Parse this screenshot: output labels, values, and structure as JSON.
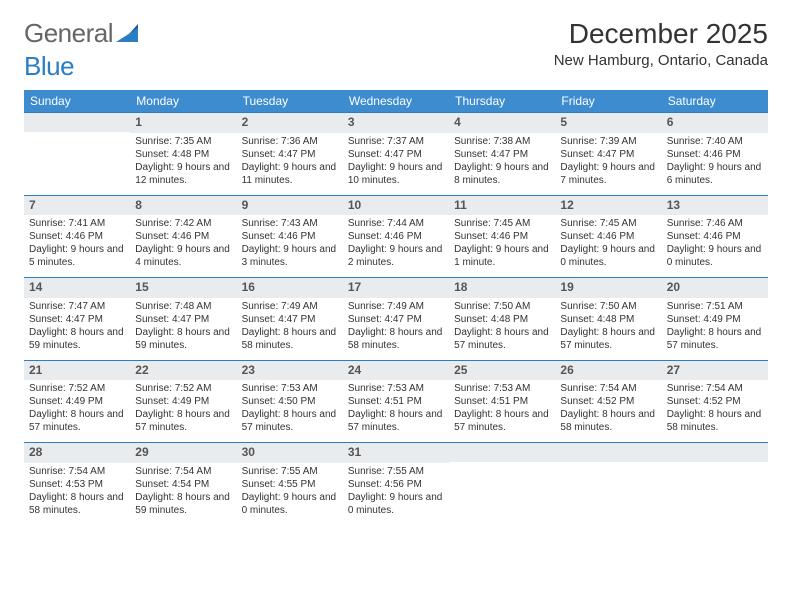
{
  "brand": {
    "part1": "General",
    "part2": "Blue"
  },
  "title": "December 2025",
  "location": "New Hamburg, Ontario, Canada",
  "colors": {
    "header_bg": "#3d8cd0",
    "header_text": "#ffffff",
    "daynum_bg": "#e9ecef",
    "border": "#2b7dc4",
    "logo_accent": "#2b7dc4"
  },
  "day_headers": [
    "Sunday",
    "Monday",
    "Tuesday",
    "Wednesday",
    "Thursday",
    "Friday",
    "Saturday"
  ],
  "weeks": [
    [
      null,
      {
        "n": "1",
        "sr": "7:35 AM",
        "ss": "4:48 PM",
        "dl": "9 hours and 12 minutes."
      },
      {
        "n": "2",
        "sr": "7:36 AM",
        "ss": "4:47 PM",
        "dl": "9 hours and 11 minutes."
      },
      {
        "n": "3",
        "sr": "7:37 AM",
        "ss": "4:47 PM",
        "dl": "9 hours and 10 minutes."
      },
      {
        "n": "4",
        "sr": "7:38 AM",
        "ss": "4:47 PM",
        "dl": "9 hours and 8 minutes."
      },
      {
        "n": "5",
        "sr": "7:39 AM",
        "ss": "4:47 PM",
        "dl": "9 hours and 7 minutes."
      },
      {
        "n": "6",
        "sr": "7:40 AM",
        "ss": "4:46 PM",
        "dl": "9 hours and 6 minutes."
      }
    ],
    [
      {
        "n": "7",
        "sr": "7:41 AM",
        "ss": "4:46 PM",
        "dl": "9 hours and 5 minutes."
      },
      {
        "n": "8",
        "sr": "7:42 AM",
        "ss": "4:46 PM",
        "dl": "9 hours and 4 minutes."
      },
      {
        "n": "9",
        "sr": "7:43 AM",
        "ss": "4:46 PM",
        "dl": "9 hours and 3 minutes."
      },
      {
        "n": "10",
        "sr": "7:44 AM",
        "ss": "4:46 PM",
        "dl": "9 hours and 2 minutes."
      },
      {
        "n": "11",
        "sr": "7:45 AM",
        "ss": "4:46 PM",
        "dl": "9 hours and 1 minute."
      },
      {
        "n": "12",
        "sr": "7:45 AM",
        "ss": "4:46 PM",
        "dl": "9 hours and 0 minutes."
      },
      {
        "n": "13",
        "sr": "7:46 AM",
        "ss": "4:46 PM",
        "dl": "9 hours and 0 minutes."
      }
    ],
    [
      {
        "n": "14",
        "sr": "7:47 AM",
        "ss": "4:47 PM",
        "dl": "8 hours and 59 minutes."
      },
      {
        "n": "15",
        "sr": "7:48 AM",
        "ss": "4:47 PM",
        "dl": "8 hours and 59 minutes."
      },
      {
        "n": "16",
        "sr": "7:49 AM",
        "ss": "4:47 PM",
        "dl": "8 hours and 58 minutes."
      },
      {
        "n": "17",
        "sr": "7:49 AM",
        "ss": "4:47 PM",
        "dl": "8 hours and 58 minutes."
      },
      {
        "n": "18",
        "sr": "7:50 AM",
        "ss": "4:48 PM",
        "dl": "8 hours and 57 minutes."
      },
      {
        "n": "19",
        "sr": "7:50 AM",
        "ss": "4:48 PM",
        "dl": "8 hours and 57 minutes."
      },
      {
        "n": "20",
        "sr": "7:51 AM",
        "ss": "4:49 PM",
        "dl": "8 hours and 57 minutes."
      }
    ],
    [
      {
        "n": "21",
        "sr": "7:52 AM",
        "ss": "4:49 PM",
        "dl": "8 hours and 57 minutes."
      },
      {
        "n": "22",
        "sr": "7:52 AM",
        "ss": "4:49 PM",
        "dl": "8 hours and 57 minutes."
      },
      {
        "n": "23",
        "sr": "7:53 AM",
        "ss": "4:50 PM",
        "dl": "8 hours and 57 minutes."
      },
      {
        "n": "24",
        "sr": "7:53 AM",
        "ss": "4:51 PM",
        "dl": "8 hours and 57 minutes."
      },
      {
        "n": "25",
        "sr": "7:53 AM",
        "ss": "4:51 PM",
        "dl": "8 hours and 57 minutes."
      },
      {
        "n": "26",
        "sr": "7:54 AM",
        "ss": "4:52 PM",
        "dl": "8 hours and 58 minutes."
      },
      {
        "n": "27",
        "sr": "7:54 AM",
        "ss": "4:52 PM",
        "dl": "8 hours and 58 minutes."
      }
    ],
    [
      {
        "n": "28",
        "sr": "7:54 AM",
        "ss": "4:53 PM",
        "dl": "8 hours and 58 minutes."
      },
      {
        "n": "29",
        "sr": "7:54 AM",
        "ss": "4:54 PM",
        "dl": "8 hours and 59 minutes."
      },
      {
        "n": "30",
        "sr": "7:55 AM",
        "ss": "4:55 PM",
        "dl": "9 hours and 0 minutes."
      },
      {
        "n": "31",
        "sr": "7:55 AM",
        "ss": "4:56 PM",
        "dl": "9 hours and 0 minutes."
      },
      null,
      null,
      null
    ]
  ],
  "labels": {
    "sunrise": "Sunrise:",
    "sunset": "Sunset:",
    "daylight": "Daylight:"
  }
}
